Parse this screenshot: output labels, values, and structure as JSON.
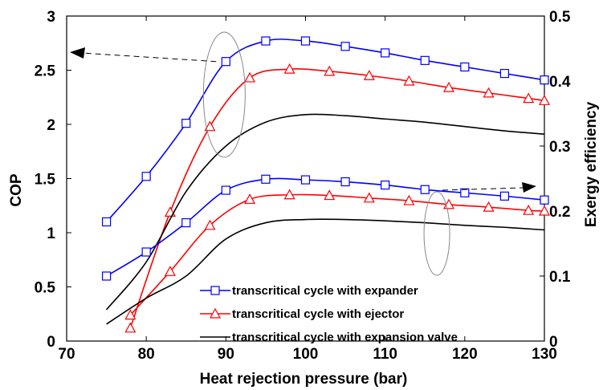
{
  "chart_data": {
    "type": "line",
    "xlabel": "Heat rejection pressure (bar)",
    "ylabel": "COP",
    "y2label": "Exergy efficiency",
    "xlim": [
      70,
      130
    ],
    "ylim": [
      0,
      3
    ],
    "y2lim": [
      0,
      0.5
    ],
    "xticks": [
      "70",
      "80",
      "90",
      "100",
      "110",
      "120",
      "130"
    ],
    "yticks": [
      "0",
      "0.5",
      "1",
      "1.5",
      "2",
      "2.5",
      "3"
    ],
    "y2ticks": [
      "0",
      "0.1",
      "0.2",
      "0.3",
      "0.4",
      "0.5"
    ],
    "grid": false,
    "legend_position": "bottom-right",
    "series": [
      {
        "name": "transcritical cycle with expander",
        "axis": "left",
        "color": "#0000ff",
        "marker": "square",
        "x": [
          75,
          80,
          85,
          90,
          95,
          100,
          105,
          110,
          115,
          120,
          125,
          130
        ],
        "y": [
          1.1,
          1.52,
          2.01,
          2.58,
          2.77,
          2.77,
          2.72,
          2.66,
          2.59,
          2.53,
          2.47,
          2.41
        ]
      },
      {
        "name": "transcritical cycle with ejector",
        "axis": "left",
        "color": "#ff0000",
        "marker": "triangle",
        "x": [
          78,
          83,
          88,
          93,
          98,
          103,
          108,
          113,
          118,
          123,
          128,
          130
        ],
        "y": [
          0.12,
          1.19,
          1.98,
          2.43,
          2.51,
          2.49,
          2.45,
          2.4,
          2.34,
          2.29,
          2.24,
          2.22
        ]
      },
      {
        "name": "transcritical cycle with expansion valve",
        "axis": "left",
        "color": "#000000",
        "marker": "none",
        "x": [
          75,
          80,
          85,
          90,
          95,
          100,
          105,
          110,
          115,
          120,
          125,
          130
        ],
        "y": [
          0.29,
          0.73,
          1.38,
          1.8,
          2.02,
          2.09,
          2.08,
          2.05,
          2.02,
          1.98,
          1.94,
          1.91
        ]
      },
      {
        "name": "transcritical cycle with expander",
        "axis": "right",
        "color": "#0000ff",
        "marker": "square",
        "x": [
          75,
          80,
          85,
          90,
          95,
          100,
          105,
          110,
          115,
          120,
          125,
          130
        ],
        "y": [
          0.1,
          0.137,
          0.182,
          0.232,
          0.249,
          0.248,
          0.245,
          0.24,
          0.233,
          0.228,
          0.223,
          0.217
        ]
      },
      {
        "name": "transcritical cycle with ejector",
        "axis": "right",
        "color": "#ff0000",
        "marker": "triangle",
        "x": [
          78,
          83,
          88,
          93,
          98,
          103,
          108,
          113,
          118,
          123,
          128,
          130
        ],
        "y": [
          0.04,
          0.107,
          0.178,
          0.218,
          0.225,
          0.224,
          0.22,
          0.216,
          0.21,
          0.206,
          0.201,
          0.2
        ]
      },
      {
        "name": "transcritical cycle with expansion valve",
        "axis": "right",
        "color": "#000000",
        "marker": "none",
        "x": [
          75,
          80,
          85,
          90,
          95,
          100,
          105,
          110,
          115,
          120,
          125,
          130
        ],
        "y": [
          0.026,
          0.066,
          0.1,
          0.157,
          0.182,
          0.187,
          0.187,
          0.185,
          0.182,
          0.178,
          0.175,
          0.171
        ]
      }
    ],
    "legend": [
      {
        "label": "transcritical cycle with expander",
        "color": "#0000ff",
        "marker": "square"
      },
      {
        "label": "transcritical cycle with ejector",
        "color": "#ff0000",
        "marker": "triangle"
      },
      {
        "label": "transcritical cycle with expansion valve",
        "color": "#000000",
        "marker": "none"
      }
    ],
    "annotations": [
      {
        "type": "ellipse-with-arrow",
        "points_to": "left-axis",
        "x": 90,
        "y": 2.2
      },
      {
        "type": "ellipse-with-arrow",
        "points_to": "right-axis",
        "x": 117,
        "y": 1.2
      }
    ]
  }
}
